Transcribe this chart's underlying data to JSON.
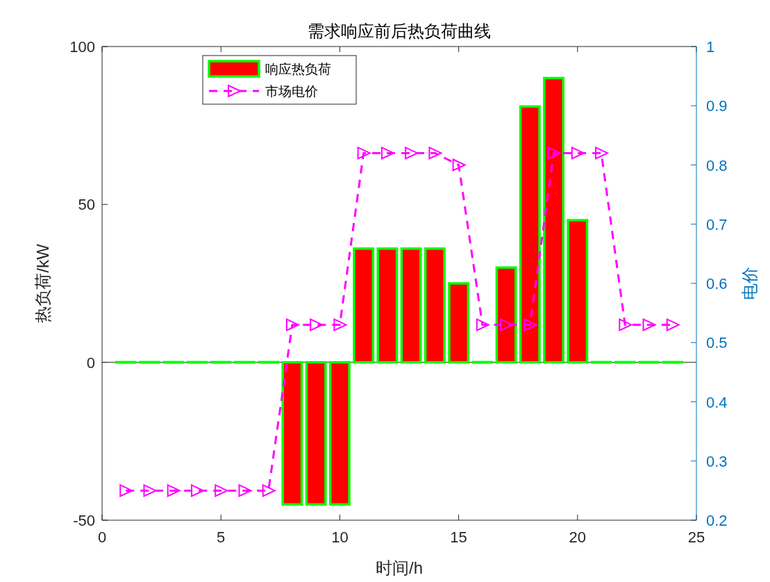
{
  "chart_data": {
    "type": "bar",
    "title": "需求响应前后热负荷曲线",
    "xlabel": "时间/h",
    "ylabel": "热负荷/kW",
    "y2label": "电价",
    "x": [
      1,
      2,
      3,
      4,
      5,
      6,
      7,
      8,
      9,
      10,
      11,
      12,
      13,
      14,
      15,
      16,
      17,
      18,
      19,
      20,
      21,
      22,
      23,
      24
    ],
    "xlim": [
      0,
      25
    ],
    "xticks": [
      0,
      5,
      10,
      15,
      20,
      25
    ],
    "ylim": [
      -50,
      100
    ],
    "yticks": [
      -50,
      0,
      50,
      100
    ],
    "y2lim": [
      0.2,
      1
    ],
    "y2ticks": [
      0.2,
      0.3,
      0.4,
      0.5,
      0.6,
      0.7,
      0.8,
      0.9,
      1
    ],
    "legend": "top left",
    "series": [
      {
        "name": "响应热负荷",
        "color": "#ff0000",
        "values": [
          0,
          0,
          0,
          0,
          0,
          0,
          0,
          -45,
          -45,
          -45,
          36,
          36,
          36,
          36,
          25,
          0,
          30,
          81,
          90,
          45,
          0,
          0,
          0,
          0
        ]
      },
      {
        "name": "市场电价",
        "type": "line",
        "axis": "y2",
        "color": "#ff00ff",
        "line_style": "dashed",
        "marker": "triangle",
        "values": [
          0.25,
          0.25,
          0.25,
          0.25,
          0.25,
          0.25,
          0.25,
          0.53,
          0.53,
          0.53,
          0.82,
          0.82,
          0.82,
          0.82,
          0.8,
          0.53,
          0.53,
          0.53,
          0.82,
          0.82,
          0.82,
          0.53,
          0.53,
          0.53
        ]
      }
    ]
  }
}
